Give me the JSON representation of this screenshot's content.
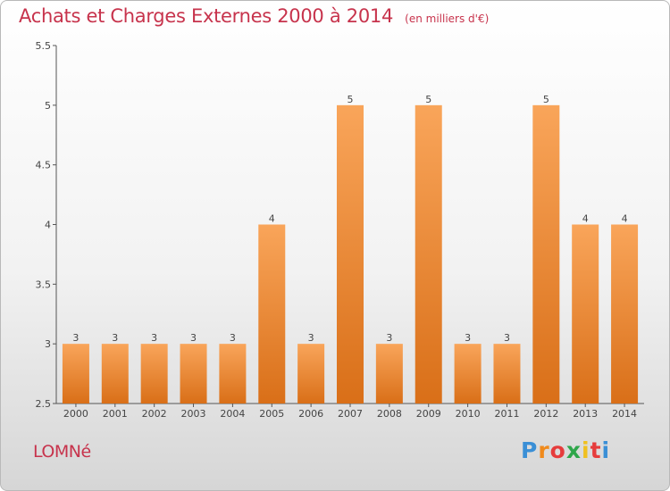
{
  "title": "Achats et Charges Externes 2000 à 2014",
  "subtitle": "(en milliers d'€)",
  "town": "LOMNé",
  "logo": {
    "letters": [
      "P",
      "r",
      "o",
      "x",
      "i",
      "t",
      "i"
    ],
    "colors": [
      "#3a8fd6",
      "#f08a1c",
      "#e63c3c",
      "#2ea64a",
      "#f0c020",
      "#e63c3c",
      "#3a8fd6"
    ]
  },
  "colors": {
    "bar_top": "#f9a55a",
    "bar_bottom": "#d96f18",
    "title": "#c7334c"
  },
  "chart_data": {
    "type": "bar",
    "categories": [
      "2000",
      "2001",
      "2002",
      "2003",
      "2004",
      "2005",
      "2006",
      "2007",
      "2008",
      "2009",
      "2010",
      "2011",
      "2012",
      "2013",
      "2014"
    ],
    "values": [
      3,
      3,
      3,
      3,
      3,
      4,
      3,
      5,
      3,
      5,
      3,
      3,
      5,
      4,
      4
    ],
    "data_labels": [
      "3",
      "3",
      "3",
      "3",
      "3",
      "4",
      "3",
      "5",
      "3",
      "5",
      "3",
      "3",
      "5",
      "4",
      "4"
    ],
    "ylim": [
      2.5,
      5.5
    ],
    "yticks": [
      2.5,
      3,
      3.5,
      4,
      4.5,
      5,
      5.5
    ],
    "ytick_labels": [
      "2.5",
      "3",
      "3.5",
      "4",
      "4.5",
      "5",
      "5.5"
    ],
    "grid": false,
    "legend": "none"
  }
}
